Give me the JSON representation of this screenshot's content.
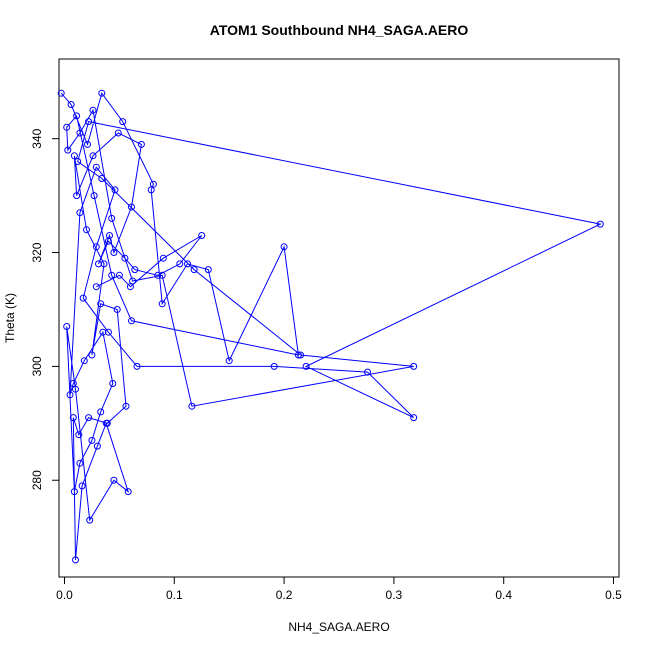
{
  "chart_data": {
    "type": "line",
    "title": "ATOM1 Southbound NH4_SAGA.AERO",
    "xlabel": "NH4_SAGA.AERO",
    "ylabel": "Theta (K)",
    "xlim": [
      -0.005,
      0.505
    ],
    "ylim": [
      263,
      354
    ],
    "xticks": [
      0.0,
      0.1,
      0.2,
      0.3,
      0.4,
      0.5
    ],
    "xtick_labels": [
      "0.0",
      "0.1",
      "0.2",
      "0.3",
      "0.4",
      "0.5"
    ],
    "yticks": [
      280,
      300,
      320,
      340
    ],
    "ytick_labels": [
      "280",
      "300",
      "320",
      "340"
    ],
    "grid": false,
    "legend": "none",
    "color": "#0000ff",
    "marker": "open-circle",
    "series": [
      {
        "x": [
          -0.003,
          0.006,
          0.021,
          0.034,
          0.053,
          0.081,
          0.079,
          0.089,
          0.112,
          0.131,
          0.15,
          0.2,
          0.213,
          0.061,
          0.043,
          0.027,
          0.011,
          0.002,
          0.003,
          0.014,
          0.026,
          0.043,
          0.062,
          0.089,
          0.116,
          0.318,
          0.215,
          0.118,
          0.034,
          0.012,
          0.022,
          0.488,
          0.22,
          0.318,
          0.276,
          0.191,
          0.066,
          0.04,
          0.017,
          0.029,
          0.046,
          0.029,
          0.014,
          0.005,
          0.008,
          0.018,
          0.035,
          0.044,
          0.033,
          0.025,
          0.014,
          0.009,
          0.002,
          0.01,
          0.023,
          0.045,
          0.058,
          0.038,
          0.03,
          0.016,
          0.01,
          0.008,
          0.013,
          0.022,
          0.039,
          0.056,
          0.048,
          0.033,
          0.025,
          0.036,
          0.02,
          0.009,
          0.011,
          0.026,
          0.049,
          0.07,
          0.061,
          0.045,
          0.041,
          0.031,
          0.04,
          0.055,
          0.064,
          0.085,
          0.105,
          0.125,
          0.09,
          0.06,
          0.05,
          0.029
        ],
        "y": [
          348,
          346,
          339,
          348,
          343,
          332,
          331,
          311,
          318,
          317,
          301,
          321,
          302,
          308,
          316,
          330,
          344,
          342,
          338,
          341,
          345,
          326,
          315,
          316,
          293,
          300,
          302,
          317,
          333,
          336,
          343,
          325,
          300,
          291,
          299,
          300,
          300,
          306,
          312,
          321,
          331,
          335,
          327,
          295,
          297,
          301,
          306,
          297,
          292,
          287,
          283,
          278,
          307,
          296,
          273,
          280,
          278,
          290,
          286,
          279,
          266,
          291,
          288,
          291,
          290,
          293,
          310,
          311,
          302,
          318,
          324,
          337,
          330,
          337,
          341,
          339,
          328,
          320,
          323,
          318,
          322,
          319,
          317,
          316,
          318,
          323,
          319,
          314,
          316,
          314
        ]
      }
    ]
  }
}
